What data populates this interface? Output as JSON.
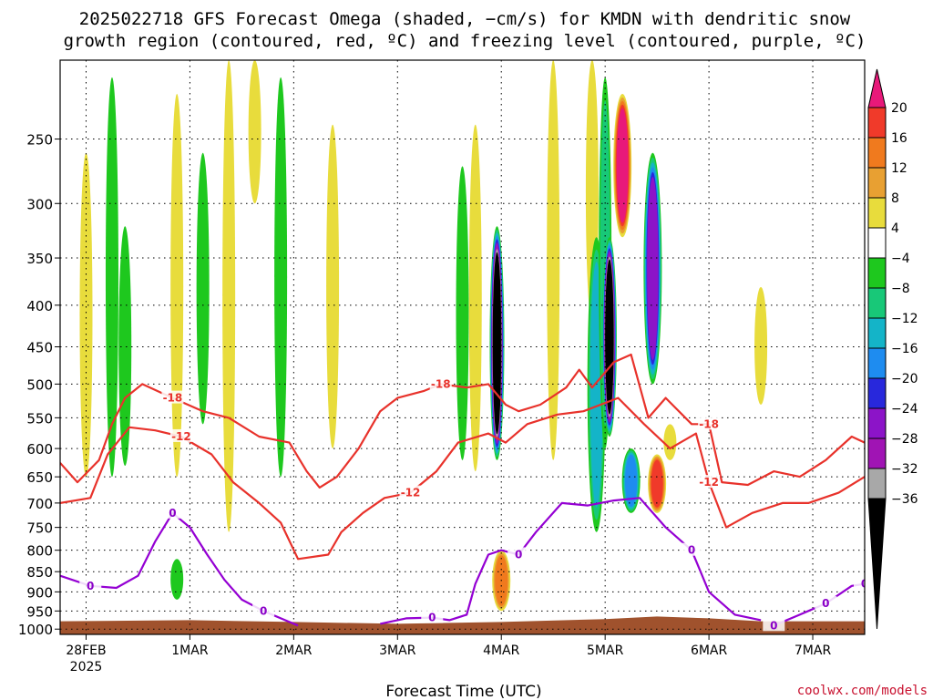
{
  "header": {
    "title_line1": "2025022718 GFS Forecast Omega (shaded, −cm/s) for KMDN with dendritic snow",
    "title_line2": "growth region (contoured, red, ºC) and freezing level (contoured, purple, ºC)"
  },
  "footer": {
    "xlabel": "Forecast Time (UTC)",
    "credit": "coolwx.com/models"
  },
  "colors": {
    "ground": "#a0522d",
    "red_contour": "#e8322b",
    "purple_contour": "#9400d3",
    "gridline": "#000000"
  },
  "chart_data": {
    "type": "heatmap",
    "station": "KMDN",
    "run": "2025022718",
    "y_axis": {
      "quantity": "pressure",
      "units": "hPa",
      "inverted": true,
      "log_scale": true,
      "range": [
        200,
        1015
      ],
      "ticks": [
        250,
        300,
        350,
        400,
        450,
        500,
        550,
        600,
        650,
        700,
        750,
        800,
        850,
        900,
        950,
        1000
      ]
    },
    "x_axis": {
      "quantity": "forecast time",
      "range": [
        "2025-02-27T18",
        "2025-03-07T12"
      ],
      "ticks": [
        {
          "label": "28FEB",
          "sublabel": "2025",
          "time": "2025-02-28T00"
        },
        {
          "label": "1MAR",
          "time": "2025-03-01T00"
        },
        {
          "label": "2MAR",
          "time": "2025-03-02T00"
        },
        {
          "label": "3MAR",
          "time": "2025-03-03T00"
        },
        {
          "label": "4MAR",
          "time": "2025-03-04T00"
        },
        {
          "label": "5MAR",
          "time": "2025-03-05T00"
        },
        {
          "label": "6MAR",
          "time": "2025-03-06T00"
        },
        {
          "label": "7MAR",
          "time": "2025-03-07T00"
        }
      ]
    },
    "grid": true,
    "colorbar": {
      "labels": [
        "20",
        "16",
        "12",
        "8",
        "4",
        "−4",
        "−8",
        "−12",
        "−16",
        "−20",
        "−24",
        "−28",
        "−32",
        "−36"
      ],
      "bands": [
        {
          "from": 20,
          "to": 24,
          "color": "#e8197a"
        },
        {
          "from": 16,
          "to": 20,
          "color": "#f03a2a"
        },
        {
          "from": 12,
          "to": 16,
          "color": "#f07a1e"
        },
        {
          "from": 8,
          "to": 12,
          "color": "#e8a032"
        },
        {
          "from": 4,
          "to": 8,
          "color": "#e8dc3c"
        },
        {
          "from": -4,
          "to": 4,
          "color": "#ffffff"
        },
        {
          "from": -8,
          "to": -4,
          "color": "#1ec81e"
        },
        {
          "from": -12,
          "to": -8,
          "color": "#18c878"
        },
        {
          "from": -16,
          "to": -12,
          "color": "#14b4c8"
        },
        {
          "from": -20,
          "to": -16,
          "color": "#1e8cf0"
        },
        {
          "from": -24,
          "to": -20,
          "color": "#2828dc"
        },
        {
          "from": -28,
          "to": -24,
          "color": "#8c14c8"
        },
        {
          "from": -32,
          "to": -28,
          "color": "#a014b4"
        },
        {
          "from": -36,
          "to": -32,
          "color": "#a8a8a8"
        },
        {
          "from": -40,
          "to": -36,
          "color": "#000000"
        }
      ]
    },
    "omega_features": [
      {
        "time": "2025-02-28T00",
        "p_top": 260,
        "p_bottom": 650,
        "value": 4
      },
      {
        "time": "2025-02-28T06",
        "p_top": 210,
        "p_bottom": 650,
        "value": -6
      },
      {
        "time": "2025-02-28T09",
        "p_top": 320,
        "p_bottom": 630,
        "value": -6
      },
      {
        "time": "2025-02-28T21",
        "p_top": 220,
        "p_bottom": 650,
        "value": 8
      },
      {
        "time": "2025-02-28T21",
        "p_top": 820,
        "p_bottom": 920,
        "value": -6
      },
      {
        "time": "2025-03-01T03",
        "p_top": 260,
        "p_bottom": 560,
        "value": -6
      },
      {
        "time": "2025-03-01T09",
        "p_top": 200,
        "p_bottom": 760,
        "value": 4
      },
      {
        "time": "2025-03-01T15",
        "p_top": 200,
        "p_bottom": 300,
        "value": 4
      },
      {
        "time": "2025-03-01T21",
        "p_top": 210,
        "p_bottom": 650,
        "value": -6
      },
      {
        "time": "2025-03-02T09",
        "p_top": 240,
        "p_bottom": 600,
        "value": 4
      },
      {
        "time": "2025-03-03T15",
        "p_top": 270,
        "p_bottom": 620,
        "value": -6
      },
      {
        "time": "2025-03-03T18",
        "p_top": 240,
        "p_bottom": 640,
        "value": 8
      },
      {
        "time": "2025-03-03T23",
        "p_top": 320,
        "p_bottom": 620,
        "value": -38
      },
      {
        "time": "2025-03-04T00",
        "p_top": 800,
        "p_bottom": 950,
        "value": 14
      },
      {
        "time": "2025-03-04T12",
        "p_top": 200,
        "p_bottom": 620,
        "value": 6
      },
      {
        "time": "2025-03-04T21",
        "p_top": 200,
        "p_bottom": 420,
        "value": 8
      },
      {
        "time": "2025-03-04T22",
        "p_top": 330,
        "p_bottom": 760,
        "value": -14
      },
      {
        "time": "2025-03-05T00",
        "p_top": 210,
        "p_bottom": 600,
        "value": -10
      },
      {
        "time": "2025-03-05T01",
        "p_top": 330,
        "p_bottom": 580,
        "value": -38
      },
      {
        "time": "2025-03-05T04",
        "p_top": 220,
        "p_bottom": 330,
        "value": 22
      },
      {
        "time": "2025-03-05T06",
        "p_top": 600,
        "p_bottom": 720,
        "value": -18
      },
      {
        "time": "2025-03-05T11",
        "p_top": 260,
        "p_bottom": 500,
        "value": -26
      },
      {
        "time": "2025-03-05T12",
        "p_top": 610,
        "p_bottom": 720,
        "value": 18
      },
      {
        "time": "2025-03-05T15",
        "p_top": 560,
        "p_bottom": 620,
        "value": 6
      },
      {
        "time": "2025-03-06T12",
        "p_top": 380,
        "p_bottom": 530,
        "value": 4
      }
    ],
    "contours": [
      {
        "name": "-18",
        "color": "red",
        "label": "-18",
        "points": [
          [
            "2025-02-27T18",
            625
          ],
          [
            "2025-02-27T22",
            660
          ],
          [
            "2025-02-28T03",
            620
          ],
          [
            "2025-02-28T06",
            560
          ],
          [
            "2025-02-28T09",
            520
          ],
          [
            "2025-02-28T13",
            500
          ],
          [
            "2025-02-28T20",
            520
          ],
          [
            "2025-03-01T03",
            540
          ],
          [
            "2025-03-01T09",
            550
          ],
          [
            "2025-03-01T16",
            580
          ],
          [
            "2025-03-01T23",
            590
          ],
          [
            "2025-03-02T03",
            640
          ],
          [
            "2025-03-02T06",
            670
          ],
          [
            "2025-03-02T10",
            650
          ],
          [
            "2025-03-02T15",
            600
          ],
          [
            "2025-03-02T20",
            540
          ],
          [
            "2025-03-03T00",
            520
          ],
          [
            "2025-03-03T06",
            510
          ],
          [
            "2025-03-03T10",
            500
          ],
          [
            "2025-03-03T16",
            505
          ],
          [
            "2025-03-03T21",
            500
          ],
          [
            "2025-03-04T01",
            530
          ],
          [
            "2025-03-04T04",
            540
          ],
          [
            "2025-03-04T09",
            530
          ],
          [
            "2025-03-04T15",
            505
          ],
          [
            "2025-03-04T18",
            480
          ],
          [
            "2025-03-04T21",
            505
          ],
          [
            "2025-03-05T02",
            470
          ],
          [
            "2025-03-05T06",
            460
          ],
          [
            "2025-03-05T10",
            550
          ],
          [
            "2025-03-05T14",
            520
          ],
          [
            "2025-03-05T20",
            560
          ],
          [
            "2025-03-06T00",
            560
          ],
          [
            "2025-03-06T03",
            660
          ],
          [
            "2025-03-06T09",
            665
          ],
          [
            "2025-03-06T15",
            640
          ],
          [
            "2025-03-06T21",
            650
          ],
          [
            "2025-03-07T03",
            620
          ],
          [
            "2025-03-07T09",
            580
          ],
          [
            "2025-03-07T12",
            590
          ]
        ]
      },
      {
        "name": "-12",
        "color": "red",
        "label": "-12",
        "points": [
          [
            "2025-02-27T18",
            700
          ],
          [
            "2025-02-28T01",
            690
          ],
          [
            "2025-02-28T05",
            610
          ],
          [
            "2025-02-28T10",
            565
          ],
          [
            "2025-02-28T16",
            570
          ],
          [
            "2025-02-28T22",
            580
          ],
          [
            "2025-03-01T05",
            610
          ],
          [
            "2025-03-01T10",
            660
          ],
          [
            "2025-03-01T16",
            700
          ],
          [
            "2025-03-01T21",
            740
          ],
          [
            "2025-03-02T01",
            820
          ],
          [
            "2025-03-02T08",
            810
          ],
          [
            "2025-03-02T11",
            760
          ],
          [
            "2025-03-02T16",
            720
          ],
          [
            "2025-03-02T21",
            690
          ],
          [
            "2025-03-03T03",
            680
          ],
          [
            "2025-03-03T09",
            640
          ],
          [
            "2025-03-03T14",
            590
          ],
          [
            "2025-03-03T21",
            575
          ],
          [
            "2025-03-04T01",
            590
          ],
          [
            "2025-03-04T06",
            560
          ],
          [
            "2025-03-04T13",
            545
          ],
          [
            "2025-03-04T19",
            540
          ],
          [
            "2025-03-05T03",
            520
          ],
          [
            "2025-03-05T09",
            560
          ],
          [
            "2025-03-05T15",
            600
          ],
          [
            "2025-03-05T21",
            575
          ],
          [
            "2025-03-06T00",
            660
          ],
          [
            "2025-03-06T04",
            750
          ],
          [
            "2025-03-06T10",
            720
          ],
          [
            "2025-03-06T17",
            700
          ],
          [
            "2025-03-06T23",
            700
          ],
          [
            "2025-03-07T06",
            680
          ],
          [
            "2025-03-07T12",
            650
          ]
        ]
      },
      {
        "name": "0",
        "color": "purple",
        "label": "0",
        "points": [
          [
            "2025-02-27T18",
            860
          ],
          [
            "2025-02-28T01",
            885
          ],
          [
            "2025-02-28T07",
            890
          ],
          [
            "2025-02-28T12",
            860
          ],
          [
            "2025-02-28T16",
            780
          ],
          [
            "2025-02-28T20",
            720
          ],
          [
            "2025-03-01T00",
            750
          ],
          [
            "2025-03-01T04",
            810
          ],
          [
            "2025-03-01T08",
            870
          ],
          [
            "2025-03-01T12",
            920
          ],
          [
            "2025-03-01T17",
            950
          ],
          [
            "2025-03-01T22",
            975
          ],
          [
            "2025-03-02T01",
            990
          ]
        ]
      },
      {
        "name": "0b",
        "color": "purple",
        "label": "0",
        "points": [
          [
            "2025-03-02T20",
            985
          ],
          [
            "2025-03-03T02",
            970
          ],
          [
            "2025-03-03T08",
            968
          ],
          [
            "2025-03-03T12",
            975
          ],
          [
            "2025-03-03T16",
            960
          ],
          [
            "2025-03-03T18",
            880
          ],
          [
            "2025-03-03T21",
            810
          ],
          [
            "2025-03-04T00",
            800
          ],
          [
            "2025-03-04T04",
            810
          ],
          [
            "2025-03-04T08",
            760
          ],
          [
            "2025-03-04T14",
            700
          ],
          [
            "2025-03-04T20",
            705
          ],
          [
            "2025-03-05T02",
            695
          ],
          [
            "2025-03-05T08",
            690
          ],
          [
            "2025-03-05T14",
            750
          ],
          [
            "2025-03-05T20",
            800
          ],
          [
            "2025-03-06T00",
            900
          ],
          [
            "2025-03-06T06",
            960
          ],
          [
            "2025-03-06T12",
            975
          ]
        ]
      },
      {
        "name": "0c",
        "color": "purple",
        "label": "0",
        "points": [
          [
            "2025-03-06T15",
            990
          ],
          [
            "2025-03-06T21",
            960
          ],
          [
            "2025-03-07T03",
            930
          ],
          [
            "2025-03-07T09",
            885
          ],
          [
            "2025-03-07T12",
            880
          ]
        ]
      }
    ],
    "ground_pressure": [
      [
        "2025-02-27T18",
        978
      ],
      [
        "2025-03-01T00",
        975
      ],
      [
        "2025-03-02T00",
        980
      ],
      [
        "2025-03-03T00",
        985
      ],
      [
        "2025-03-04T00",
        980
      ],
      [
        "2025-03-05T00",
        972
      ],
      [
        "2025-03-05T12",
        965
      ],
      [
        "2025-03-06T00",
        970
      ],
      [
        "2025-03-06T12",
        978
      ],
      [
        "2025-03-07T12",
        978
      ]
    ]
  }
}
